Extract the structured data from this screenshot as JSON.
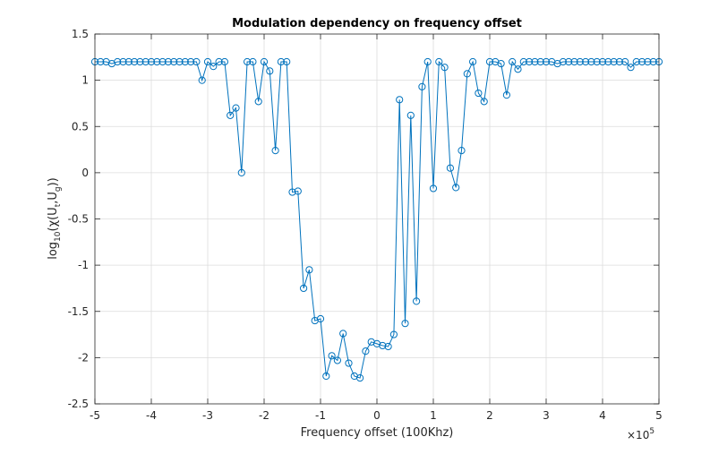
{
  "chart_data": {
    "type": "line",
    "title": "Modulation dependency on frequency offset",
    "xlabel": "Frequency offset (100Khz)",
    "ylabel_parts": {
      "log": "log",
      "log_sub": "10",
      "open": "(",
      "chi": "χ",
      "u1": "(U",
      "u1_sub": "t",
      "comma": ",U",
      "u2_sub": "g",
      "close": "))"
    },
    "x_exponent_label": {
      "times": "×10",
      "power": "5"
    },
    "xlim": [
      -500000,
      500000
    ],
    "ylim": [
      -2.5,
      1.5
    ],
    "x_tick_values": [
      -500000,
      -400000,
      -300000,
      -200000,
      -100000,
      0,
      100000,
      200000,
      300000,
      400000,
      500000
    ],
    "x_tick_labels": [
      "-5",
      "-4",
      "-3",
      "-2",
      "-1",
      "0",
      "1",
      "2",
      "3",
      "4",
      "5"
    ],
    "y_tick_values": [
      -2.5,
      -2,
      -1.5,
      -1,
      -0.5,
      0,
      0.5,
      1,
      1.5
    ],
    "y_tick_labels": [
      "-2.5",
      "-2",
      "-1.5",
      "-1",
      "-0.5",
      "0",
      "0.5",
      "1",
      "1.5"
    ],
    "grid": true,
    "marker": "circle",
    "color": "#0072bd",
    "x": [
      -500000,
      -490000,
      -480000,
      -470000,
      -460000,
      -450000,
      -440000,
      -430000,
      -420000,
      -410000,
      -400000,
      -390000,
      -380000,
      -370000,
      -360000,
      -350000,
      -340000,
      -330000,
      -320000,
      -310000,
      -300000,
      -290000,
      -280000,
      -270000,
      -260000,
      -250000,
      -240000,
      -230000,
      -220000,
      -210000,
      -200000,
      -190000,
      -180000,
      -170000,
      -160000,
      -150000,
      -140000,
      -130000,
      -120000,
      -110000,
      -100000,
      -90000,
      -80000,
      -70000,
      -60000,
      -50000,
      -40000,
      -30000,
      -20000,
      -10000,
      0,
      10000,
      20000,
      30000,
      40000,
      50000,
      60000,
      70000,
      80000,
      90000,
      100000,
      110000,
      120000,
      130000,
      140000,
      150000,
      160000,
      170000,
      180000,
      190000,
      200000,
      210000,
      220000,
      230000,
      240000,
      250000,
      260000,
      270000,
      280000,
      290000,
      300000,
      310000,
      320000,
      330000,
      340000,
      350000,
      360000,
      370000,
      380000,
      390000,
      400000,
      410000,
      420000,
      430000,
      440000,
      450000,
      460000,
      470000,
      480000,
      490000,
      500000
    ],
    "y": [
      1.2,
      1.2,
      1.2,
      1.18,
      1.2,
      1.2,
      1.2,
      1.2,
      1.2,
      1.2,
      1.2,
      1.2,
      1.2,
      1.2,
      1.2,
      1.2,
      1.2,
      1.2,
      1.2,
      1.0,
      1.2,
      1.15,
      1.2,
      1.2,
      0.62,
      0.7,
      0.0,
      1.2,
      1.2,
      0.77,
      1.2,
      1.1,
      0.24,
      1.2,
      1.2,
      -0.21,
      -0.2,
      -1.25,
      -1.05,
      -1.6,
      -1.58,
      -2.2,
      -1.98,
      -2.03,
      -1.74,
      -2.06,
      -2.2,
      -2.22,
      -1.93,
      -1.83,
      -1.85,
      -1.87,
      -1.88,
      -1.75,
      0.79,
      -1.63,
      0.62,
      -1.39,
      0.93,
      1.2,
      -0.17,
      1.2,
      1.14,
      0.05,
      -0.16,
      0.24,
      1.07,
      1.2,
      0.86,
      0.77,
      1.2,
      1.2,
      1.18,
      0.84,
      1.2,
      1.12,
      1.2,
      1.2,
      1.2,
      1.2,
      1.2,
      1.2,
      1.18,
      1.2,
      1.2,
      1.2,
      1.2,
      1.2,
      1.2,
      1.2,
      1.2,
      1.2,
      1.2,
      1.2,
      1.2,
      1.14,
      1.2,
      1.2,
      1.2,
      1.2,
      1.2
    ]
  }
}
